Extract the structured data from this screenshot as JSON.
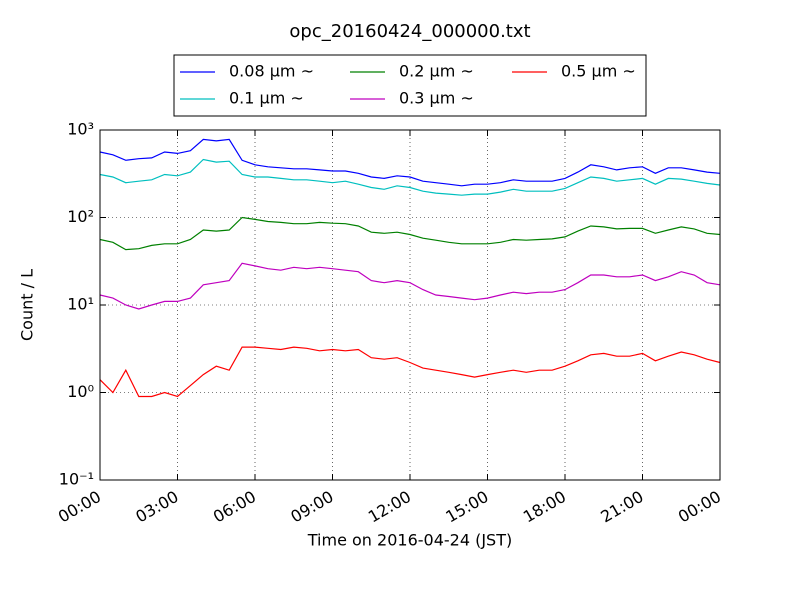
{
  "chart_data": {
    "type": "line",
    "title": "opc_20160424_000000.txt",
    "x_label": "Time on 2016-04-24 (JST)",
    "y_label": "Count / L",
    "yscale": "log",
    "grid": true,
    "legend": "upper center",
    "xlim": [
      0,
      24
    ],
    "xticks": [
      {
        "value": 0,
        "label": "00:00"
      },
      {
        "value": 3,
        "label": "03:00"
      },
      {
        "value": 6,
        "label": "06:00"
      },
      {
        "value": 9,
        "label": "09:00"
      },
      {
        "value": 12,
        "label": "12:00"
      },
      {
        "value": 15,
        "label": "15:00"
      },
      {
        "value": 18,
        "label": "18:00"
      },
      {
        "value": 21,
        "label": "21:00"
      },
      {
        "value": 24,
        "label": "00:00"
      }
    ],
    "ylim": [
      0.1,
      1000
    ],
    "yticks": [
      {
        "value": 0.1,
        "label": "10⁻¹"
      },
      {
        "value": 1,
        "label": "10⁰"
      },
      {
        "value": 10,
        "label": "10¹"
      },
      {
        "value": 100,
        "label": "10²"
      },
      {
        "value": 1000,
        "label": "10³"
      }
    ],
    "x": [
      0,
      0.5,
      1,
      1.5,
      2,
      2.5,
      3,
      3.5,
      4,
      4.5,
      5,
      5.5,
      6,
      6.5,
      7,
      7.5,
      8,
      8.5,
      9,
      9.5,
      10,
      10.5,
      11,
      11.5,
      12,
      12.5,
      13,
      13.5,
      14,
      14.5,
      15,
      15.5,
      16,
      16.5,
      17,
      17.5,
      18,
      18.5,
      19,
      19.5,
      20,
      20.5,
      21,
      21.5,
      22,
      22.5,
      23,
      23.5,
      24
    ],
    "series": [
      {
        "name": "0.08 μm ~",
        "color": "#0000ff",
        "values": [
          560,
          520,
          450,
          470,
          480,
          560,
          540,
          580,
          780,
          750,
          780,
          450,
          400,
          380,
          370,
          360,
          360,
          350,
          340,
          340,
          320,
          290,
          280,
          300,
          290,
          260,
          250,
          240,
          230,
          240,
          240,
          250,
          270,
          260,
          260,
          260,
          280,
          330,
          400,
          380,
          350,
          370,
          380,
          320,
          370,
          370,
          350,
          330,
          320
        ]
      },
      {
        "name": "0.1 μm ~",
        "color": "#00bfbf",
        "values": [
          310,
          290,
          250,
          260,
          270,
          310,
          300,
          330,
          460,
          430,
          440,
          310,
          290,
          290,
          280,
          270,
          270,
          260,
          250,
          260,
          240,
          220,
          210,
          230,
          220,
          200,
          190,
          185,
          180,
          185,
          185,
          195,
          210,
          200,
          200,
          200,
          215,
          250,
          290,
          280,
          260,
          270,
          280,
          240,
          280,
          275,
          260,
          245,
          235
        ]
      },
      {
        "name": "0.2 μm ~",
        "color": "#008000",
        "values": [
          56,
          52,
          43,
          44,
          48,
          50,
          50,
          56,
          72,
          70,
          72,
          100,
          95,
          90,
          88,
          85,
          85,
          88,
          86,
          85,
          80,
          68,
          66,
          68,
          64,
          58,
          55,
          52,
          50,
          50,
          50,
          52,
          56,
          55,
          56,
          57,
          60,
          70,
          80,
          78,
          74,
          75,
          75,
          66,
          72,
          78,
          74,
          66,
          64
        ]
      },
      {
        "name": "0.3 μm ~",
        "color": "#bf00bf",
        "values": [
          13,
          12,
          10,
          9,
          10,
          11,
          11,
          12,
          17,
          18,
          19,
          30,
          28,
          26,
          25,
          27,
          26,
          27,
          26,
          25,
          24,
          19,
          18,
          19,
          18,
          15,
          13,
          12.5,
          12,
          11.5,
          12,
          13,
          14,
          13.5,
          14,
          14,
          15,
          18,
          22,
          22,
          21,
          21,
          22,
          19,
          21,
          24,
          22,
          18,
          17
        ]
      },
      {
        "name": "0.5 μm ~",
        "color": "#ff0000",
        "values": [
          1.4,
          1.0,
          1.8,
          0.9,
          0.9,
          1.0,
          0.9,
          1.2,
          1.6,
          2.0,
          1.8,
          3.3,
          3.3,
          3.2,
          3.1,
          3.3,
          3.2,
          3.0,
          3.1,
          3.0,
          3.1,
          2.5,
          2.4,
          2.5,
          2.2,
          1.9,
          1.8,
          1.7,
          1.6,
          1.5,
          1.6,
          1.7,
          1.8,
          1.7,
          1.8,
          1.8,
          2.0,
          2.3,
          2.7,
          2.8,
          2.6,
          2.6,
          2.8,
          2.3,
          2.6,
          2.9,
          2.7,
          2.4,
          2.2
        ]
      }
    ]
  }
}
